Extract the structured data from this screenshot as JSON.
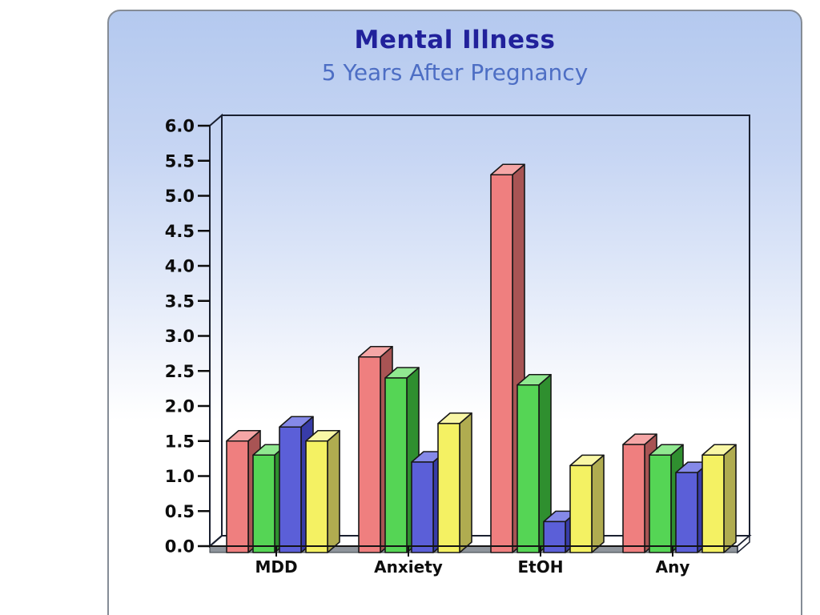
{
  "chart_data": {
    "type": "bar",
    "style": "3d-grouped-bars",
    "title": "Mental Illness",
    "subtitle": "5 Years After Pregnancy",
    "categories": [
      "MDD",
      "Anxiety",
      "EtOH",
      "Any"
    ],
    "series": [
      {
        "name": "red-series",
        "color": "#ef7f7f",
        "top_color": "#f5a6a6",
        "side_color": "#a85454",
        "values": [
          1.5,
          2.7,
          5.3,
          1.45
        ]
      },
      {
        "name": "green-series",
        "color": "#55d555",
        "top_color": "#90e890",
        "side_color": "#2f8f2f",
        "values": [
          1.3,
          2.4,
          2.3,
          1.3
        ]
      },
      {
        "name": "blue-series",
        "color": "#5b5fd8",
        "top_color": "#8589e8",
        "side_color": "#383ca8",
        "values": [
          1.7,
          1.2,
          0.35,
          1.05
        ]
      },
      {
        "name": "yellow-series",
        "color": "#f4f163",
        "top_color": "#f9f7a6",
        "side_color": "#b0ac50",
        "values": [
          1.5,
          1.75,
          1.15,
          1.3
        ]
      }
    ],
    "ylim": [
      0,
      6
    ],
    "ytick_labels": [
      "6.0",
      "5.5",
      "5.0",
      "4.5",
      "4.0",
      "3.5",
      "3.0",
      "2.5",
      "2.0",
      "1.5",
      "1.0",
      "0.5",
      "0.0"
    ],
    "grid": false,
    "legend": "none",
    "colors": {
      "title_text": "#21219b",
      "subtitle_text": "#4d6ec4",
      "axis_line": "#1a2030",
      "floor_gray": "#8f959c",
      "panel_top": "#b4c9ef",
      "panel_border": "#858c96"
    }
  }
}
